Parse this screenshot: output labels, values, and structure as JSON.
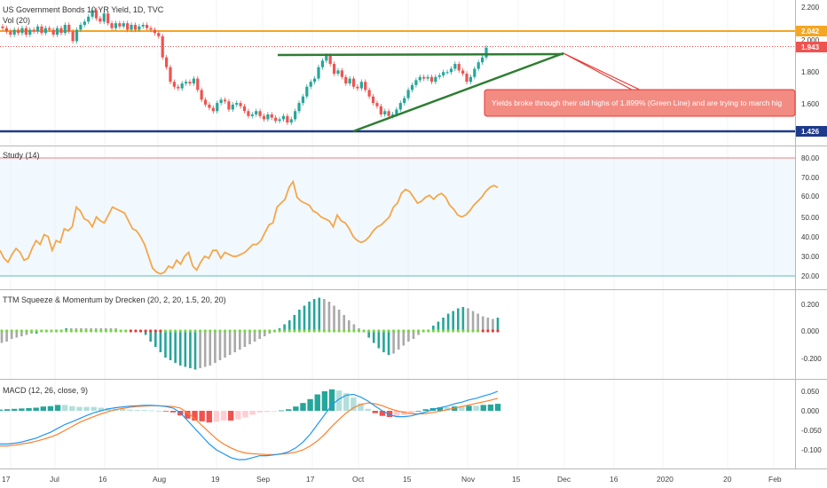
{
  "header": {
    "title": "US Government Bonds 10 YR Yield, 1D, TVC",
    "vol_label": "Vol (20)"
  },
  "price_axis": {
    "ticks": [
      "2.200",
      "1.800",
      "1.600"
    ],
    "badges": [
      {
        "label": "2.042",
        "color": "#f5a623",
        "value": 2.042
      },
      {
        "label": "1.943",
        "color": "#ef5350",
        "value": 1.943
      },
      {
        "label": "1.426",
        "color": "#1e3a8a",
        "value": 1.426
      }
    ],
    "partial_tick": "2.000"
  },
  "annotation": {
    "text": "Yields broke through their old highs of 1.899% (Green Line) and are trying to march hig",
    "color": "#f28b82"
  },
  "study": {
    "title": "Study (14)",
    "ticks": [
      "80.00",
      "70.00",
      "60.00",
      "50.00",
      "40.00",
      "30.00",
      "20.00"
    ]
  },
  "ttm": {
    "title": "TTM Squeeze & Momentum by Drecken (20, 2, 20, 1.5, 20, 20)",
    "ticks": [
      "0.200",
      "0.000",
      "-0.200"
    ]
  },
  "macd": {
    "title": "MACD (12, 26, close, 9)",
    "ticks": [
      "0.050",
      "0.000",
      "-0.050",
      "-0.100"
    ]
  },
  "time_axis": {
    "labels": [
      "17",
      "Jul",
      "16",
      "Aug",
      "19",
      "Sep",
      "17",
      "Oct",
      "15",
      "Nov",
      "15",
      "Dec",
      "16",
      "2020",
      "20",
      "Feb"
    ]
  },
  "chart_data": [
    {
      "type": "candlestick",
      "title": "US Government Bonds 10 YR Yield, 1D, TVC",
      "ylim": [
        1.4,
        2.23
      ],
      "levels": [
        {
          "value": 2.042,
          "color": "#f5a623"
        },
        {
          "value": 1.943,
          "color": "#ef5350",
          "style": "dotted"
        },
        {
          "value": 1.426,
          "color": "#1e3a8a"
        },
        {
          "value": 1.899,
          "color": "#2e7d32"
        }
      ],
      "close": [
        2.06,
        2.04,
        2.02,
        2.05,
        2.03,
        2.06,
        2.02,
        2.05,
        2.04,
        2.07,
        2.03,
        2.06,
        2.05,
        2.02,
        2.06,
        2.03,
        2.08,
        2.04,
        1.98,
        2.05,
        2.08,
        2.1,
        2.13,
        2.17,
        2.12,
        2.1,
        2.15,
        2.09,
        2.06,
        2.09,
        2.07,
        2.09,
        2.05,
        2.08,
        2.05,
        2.07,
        2.08,
        2.06,
        2.05,
        2.03,
        2.01,
        1.88,
        1.82,
        1.73,
        1.7,
        1.69,
        1.72,
        1.73,
        1.72,
        1.75,
        1.68,
        1.62,
        1.59,
        1.57,
        1.55,
        1.6,
        1.62,
        1.61,
        1.56,
        1.59,
        1.6,
        1.58,
        1.55,
        1.52,
        1.53,
        1.55,
        1.52,
        1.5,
        1.53,
        1.51,
        1.49,
        1.5,
        1.52,
        1.48,
        1.5,
        1.55,
        1.6,
        1.64,
        1.7,
        1.73,
        1.75,
        1.82,
        1.86,
        1.89,
        1.84,
        1.78,
        1.8,
        1.76,
        1.72,
        1.75,
        1.7,
        1.69,
        1.73,
        1.68,
        1.64,
        1.6,
        1.58,
        1.53,
        1.55,
        1.52,
        1.53,
        1.56,
        1.6,
        1.63,
        1.68,
        1.71,
        1.74,
        1.76,
        1.75,
        1.76,
        1.73,
        1.76,
        1.77,
        1.79,
        1.79,
        1.81,
        1.84,
        1.8,
        1.78,
        1.73,
        1.76,
        1.81,
        1.85,
        1.88,
        1.94
      ],
      "study": [
        33,
        29,
        27,
        31,
        34,
        32,
        28,
        29,
        34,
        38,
        36,
        41,
        40,
        33,
        38,
        37,
        44,
        43,
        45,
        55,
        53,
        49,
        48,
        45,
        50,
        48,
        47,
        51,
        55,
        54,
        53,
        52,
        48,
        44,
        43,
        40,
        36,
        30,
        24,
        22,
        21,
        22,
        25,
        24,
        28,
        26,
        30,
        32,
        25,
        23,
        27,
        30,
        29,
        33,
        33,
        29,
        32,
        31,
        30,
        30,
        31,
        32,
        34,
        36,
        36,
        38,
        42,
        46,
        47,
        55,
        57,
        59,
        65,
        68,
        60,
        58,
        57,
        56,
        53,
        52,
        50,
        49,
        48,
        45,
        51,
        48,
        47,
        44,
        40,
        38,
        37,
        38,
        40,
        43,
        45,
        46,
        48,
        50,
        55,
        57,
        62,
        64,
        63,
        60,
        57,
        58,
        60,
        61,
        59,
        61,
        62,
        60,
        56,
        54,
        51,
        50,
        51,
        53,
        56,
        58,
        60,
        63,
        65,
        66,
        65
      ],
      "ttm_momentum": [
        -0.09,
        -0.08,
        -0.06,
        -0.05,
        -0.04,
        -0.03,
        -0.02,
        -0.02,
        -0.01,
        -0.01,
        0.0,
        0.01,
        0.01,
        0.02,
        0.02,
        0.02,
        0.02,
        0.02,
        0.02,
        0.02,
        0.02,
        0.02,
        0.02,
        0.02,
        0.01,
        0.01,
        0.01,
        0.0,
        -0.01,
        -0.03,
        -0.08,
        -0.12,
        -0.16,
        -0.2,
        -0.22,
        -0.24,
        -0.26,
        -0.27,
        -0.28,
        -0.29,
        -0.28,
        -0.27,
        -0.26,
        -0.24,
        -0.22,
        -0.2,
        -0.18,
        -0.16,
        -0.14,
        -0.12,
        -0.1,
        -0.08,
        -0.06,
        -0.04,
        -0.02,
        0.0,
        0.02,
        0.05,
        0.08,
        0.12,
        0.16,
        0.19,
        0.22,
        0.24,
        0.25,
        0.24,
        0.22,
        0.19,
        0.16,
        0.12,
        0.08,
        0.05,
        0.02,
        -0.01,
        -0.05,
        -0.09,
        -0.13,
        -0.16,
        -0.18,
        -0.17,
        -0.14,
        -0.11,
        -0.08,
        -0.06,
        -0.03,
        -0.01,
        0.01,
        0.04,
        0.07,
        0.1,
        0.13,
        0.15,
        0.17,
        0.18,
        0.17,
        0.15,
        0.13,
        0.11,
        0.1,
        0.09,
        0.1
      ],
      "macd": [
        -0.085,
        -0.085,
        -0.083,
        -0.08,
        -0.075,
        -0.07,
        -0.062,
        -0.055,
        -0.045,
        -0.035,
        -0.028,
        -0.02,
        -0.012,
        -0.005,
        0.0,
        0.005,
        0.008,
        0.01,
        0.012,
        0.013,
        0.014,
        0.014,
        0.013,
        0.011,
        0.007,
        -0.005,
        -0.025,
        -0.045,
        -0.065,
        -0.085,
        -0.1,
        -0.11,
        -0.12,
        -0.125,
        -0.125,
        -0.12,
        -0.115,
        -0.115,
        -0.113,
        -0.11,
        -0.105,
        -0.095,
        -0.08,
        -0.06,
        -0.035,
        -0.01,
        0.015,
        0.03,
        0.04,
        0.042,
        0.035,
        0.025,
        0.012,
        0.0,
        -0.01,
        -0.015,
        -0.015,
        -0.013,
        -0.008,
        -0.003,
        0.003,
        0.008,
        0.012,
        0.018,
        0.022,
        0.028,
        0.032,
        0.038,
        0.043,
        0.05
      ],
      "signal": [
        -0.09,
        -0.09,
        -0.088,
        -0.085,
        -0.082,
        -0.078,
        -0.073,
        -0.067,
        -0.06,
        -0.05,
        -0.04,
        -0.03,
        -0.022,
        -0.015,
        -0.008,
        -0.002,
        0.003,
        0.006,
        0.009,
        0.011,
        0.012,
        0.013,
        0.013,
        0.012,
        0.011,
        0.007,
        -0.005,
        -0.02,
        -0.038,
        -0.055,
        -0.072,
        -0.085,
        -0.095,
        -0.103,
        -0.108,
        -0.11,
        -0.111,
        -0.112,
        -0.112,
        -0.111,
        -0.109,
        -0.106,
        -0.1,
        -0.09,
        -0.077,
        -0.06,
        -0.04,
        -0.022,
        -0.005,
        0.008,
        0.016,
        0.02,
        0.018,
        0.013,
        0.006,
        0.0,
        -0.004,
        -0.007,
        -0.008,
        -0.007,
        -0.004,
        -0.001,
        0.003,
        0.007,
        0.011,
        0.015,
        0.019,
        0.023,
        0.027,
        0.032
      ],
      "macd_hist": [
        0.003,
        0.004,
        0.005,
        0.006,
        0.007,
        0.008,
        0.011,
        0.012,
        0.015,
        0.015,
        0.012,
        0.01,
        0.01,
        0.01,
        0.008,
        0.007,
        0.005,
        0.004,
        0.003,
        0.002,
        0.002,
        0.001,
        0.0,
        -0.001,
        -0.004,
        -0.012,
        -0.02,
        -0.025,
        -0.027,
        -0.03,
        -0.028,
        -0.025,
        -0.025,
        -0.022,
        -0.017,
        -0.01,
        -0.004,
        -0.003,
        -0.001,
        0.001,
        0.004,
        0.011,
        0.02,
        0.03,
        0.042,
        0.05,
        0.055,
        0.052,
        0.045,
        0.034,
        0.019,
        0.005,
        -0.006,
        -0.013,
        -0.016,
        -0.015,
        -0.011,
        -0.006,
        0.0,
        0.004,
        0.007,
        0.009,
        0.009,
        0.011,
        0.011,
        0.013,
        0.013,
        0.015,
        0.016,
        0.018
      ]
    }
  ]
}
